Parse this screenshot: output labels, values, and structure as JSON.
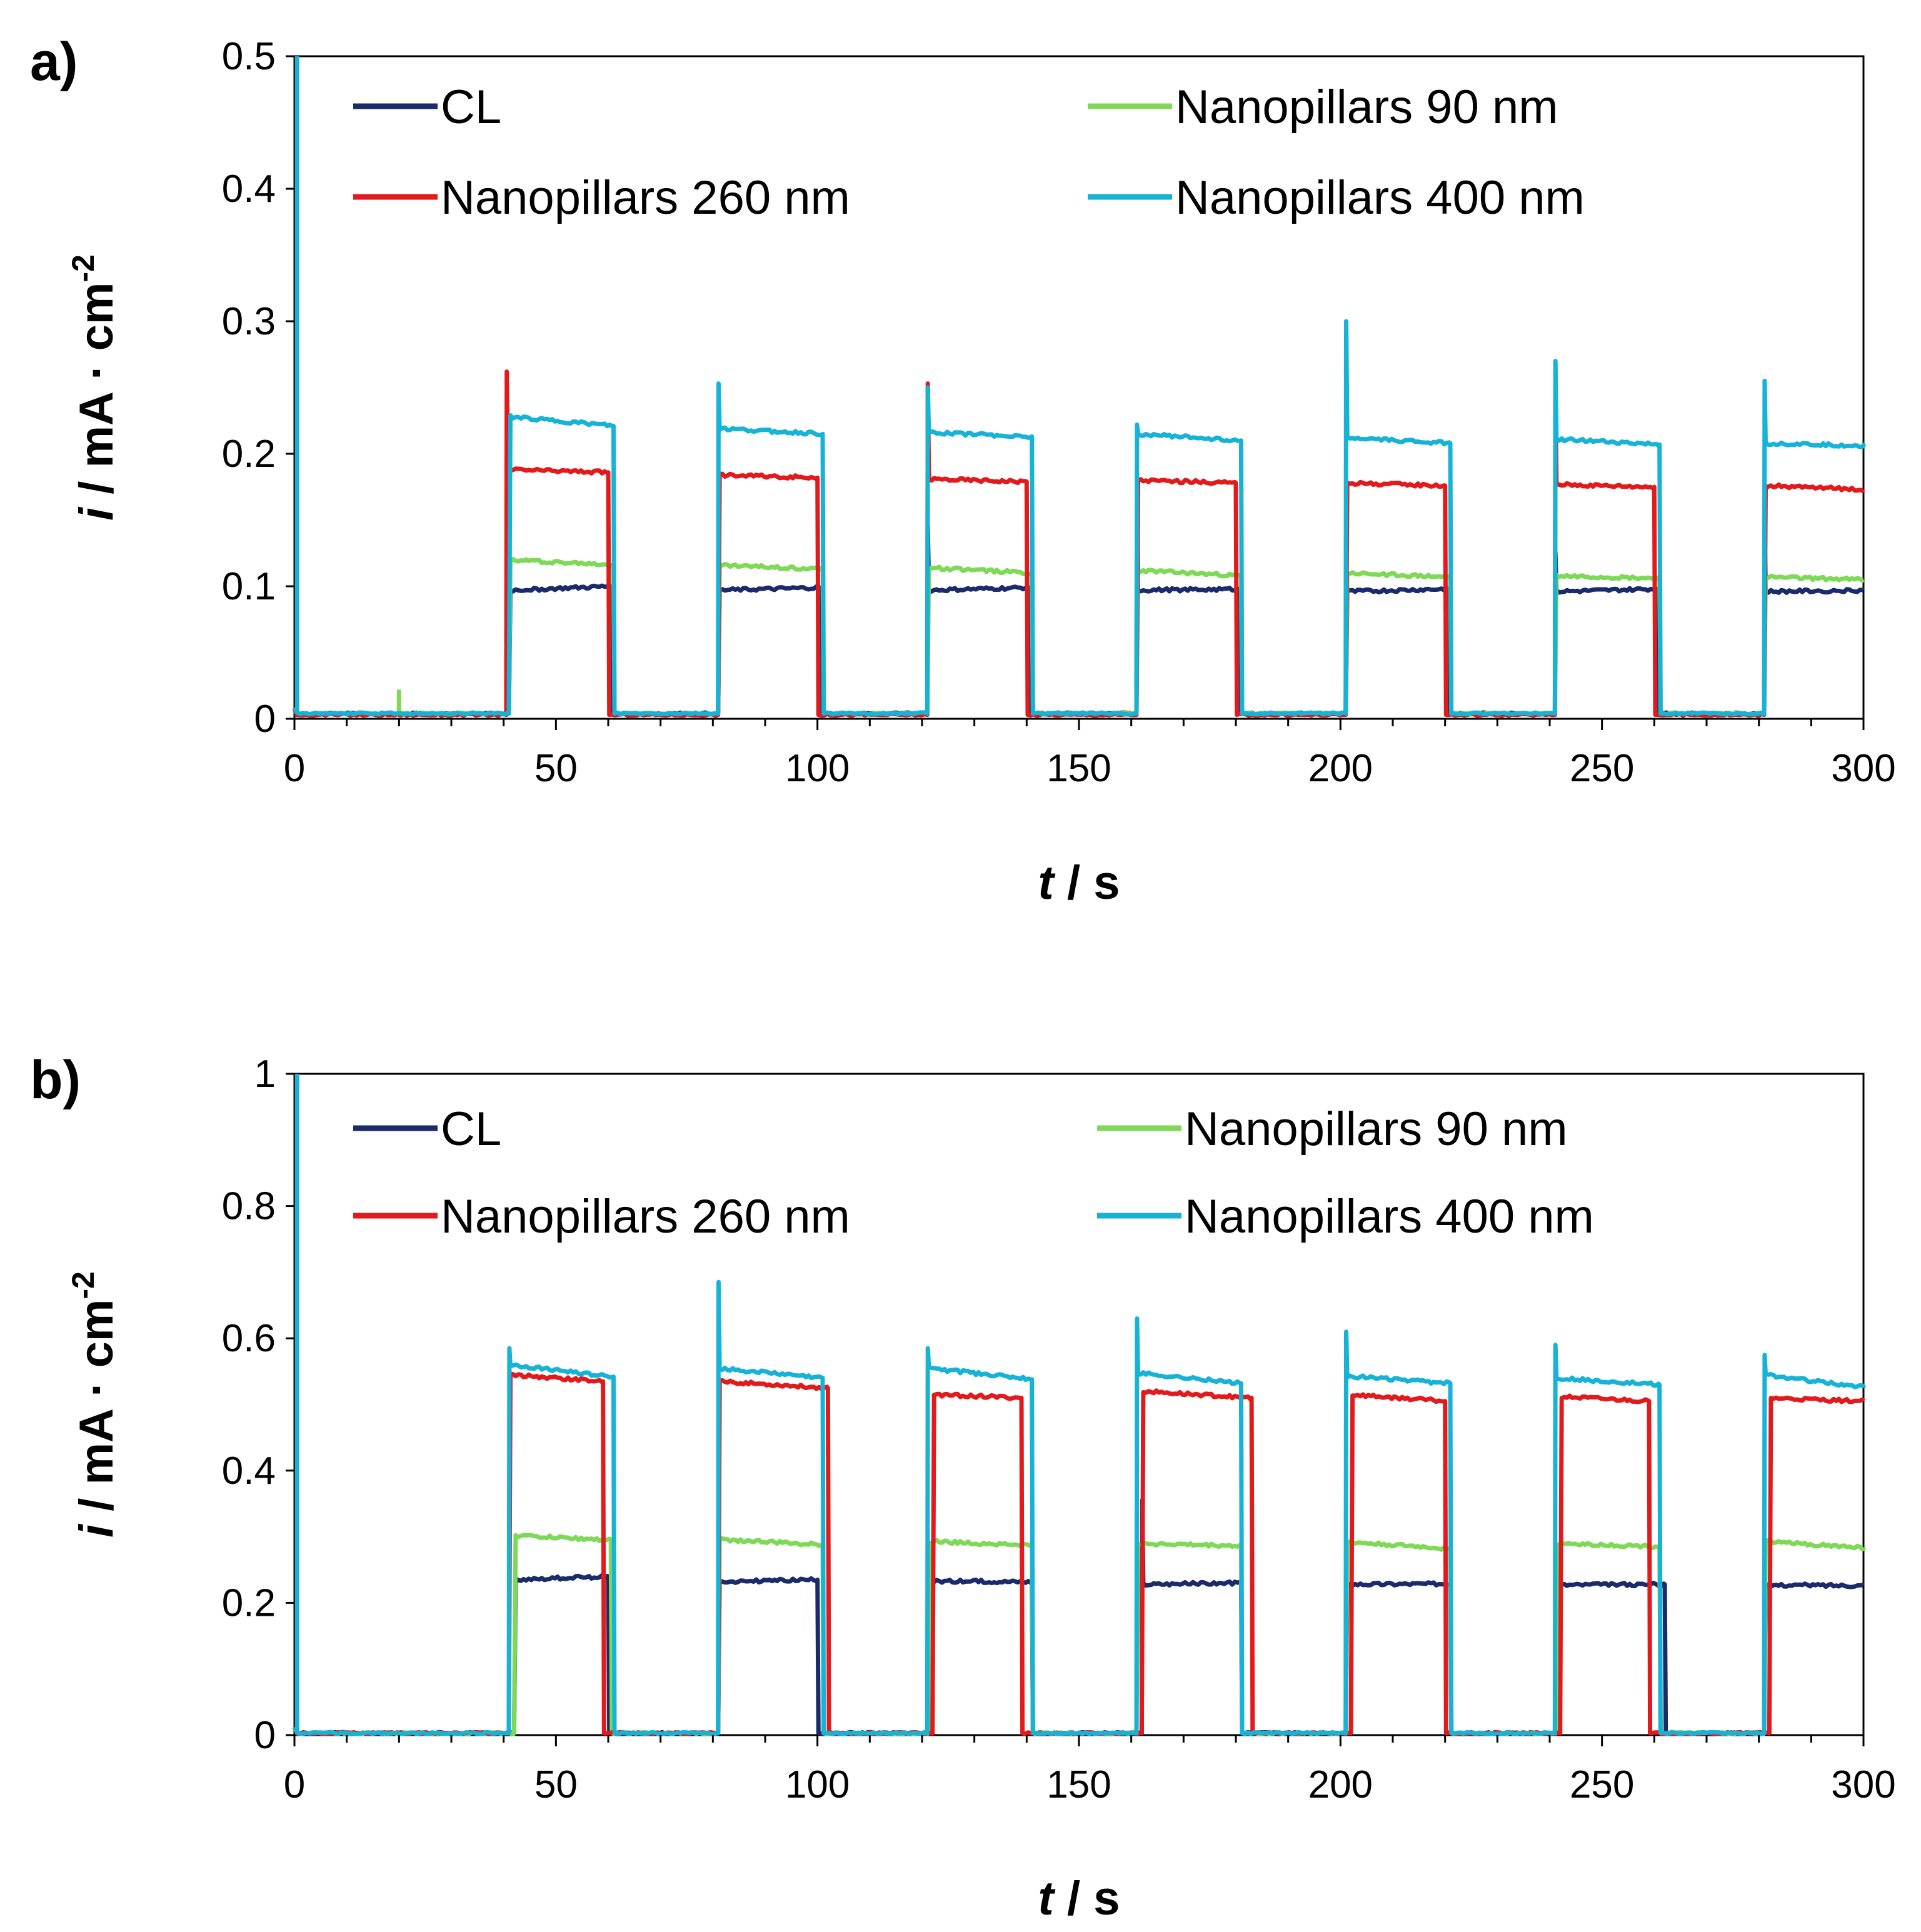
{
  "chart_data": [
    {
      "type": "line",
      "panel_label": "a)",
      "title": "",
      "xlabel_var": "t",
      "xlabel_unit": " / s",
      "ylabel_var": "i",
      "ylabel_unit": " / mA · cm",
      "ylabel_sup": "-2",
      "xlim": [
        0,
        300
      ],
      "ylim": [
        0,
        0.5
      ],
      "xticks": [
        "0",
        "50",
        "100",
        "150",
        "200",
        "250",
        "300"
      ],
      "xtick_values": [
        0,
        50,
        100,
        150,
        200,
        250,
        300
      ],
      "yticks": [
        "0",
        "0.1",
        "0.2",
        "0.3",
        "0.4",
        "0.5"
      ],
      "ytick_values": [
        0,
        0.1,
        0.2,
        0.3,
        0.4,
        0.5
      ],
      "grid": false,
      "legend": "top, two columns",
      "series": [
        {
          "name": "CL",
          "color": "#1b2a6b",
          "baseline": 0.004,
          "on_windows": [
            [
              41,
              60.5
            ],
            [
              81,
              100.5
            ],
            [
              121,
              140.5
            ],
            [
              161,
              180.5
            ],
            [
              201,
              220.5
            ],
            [
              241,
              260.5
            ],
            [
              281,
              300
            ]
          ],
          "on_start": [
            0.097,
            0.097,
            0.097,
            0.097,
            0.096,
            0.096,
            0.096
          ],
          "on_end": [
            0.1,
            0.099,
            0.099,
            0.098,
            0.098,
            0.098,
            0.097
          ],
          "spikes": [
            [
              120.5,
              0.145
            ],
            [
              161.5,
              0.165
            ],
            [
              241.5,
              0.125
            ],
            [
              281.5,
              0.145
            ]
          ]
        },
        {
          "name": "Nanopillars 90 nm",
          "color": "#7ed957",
          "baseline": 0.004,
          "on_windows": [
            [
              41,
              61
            ],
            [
              81,
              101
            ],
            [
              121,
              141
            ],
            [
              161,
              181
            ],
            [
              201,
              221
            ],
            [
              241,
              261
            ],
            [
              281,
              300
            ]
          ],
          "on_start": [
            0.12,
            0.116,
            0.114,
            0.112,
            0.11,
            0.108,
            0.107
          ],
          "on_end": [
            0.116,
            0.113,
            0.11,
            0.108,
            0.107,
            0.106,
            0.105
          ],
          "spikes": [
            [
              20,
              0.022
            ]
          ]
        },
        {
          "name": "Nanopillars 260 nm",
          "color": "#e31a1c",
          "baseline": 0.003,
          "on_windows": [
            [
              40.5,
              60
            ],
            [
              81,
              100
            ],
            [
              121,
              140
            ],
            [
              161,
              180
            ],
            [
              201,
              220
            ],
            [
              241,
              260
            ],
            [
              281,
              300
            ]
          ],
          "on_start": [
            0.188,
            0.184,
            0.181,
            0.18,
            0.178,
            0.177,
            0.176
          ],
          "on_end": [
            0.186,
            0.182,
            0.179,
            0.178,
            0.176,
            0.175,
            0.173
          ],
          "spikes": [
            [
              40.5,
              0.262
            ],
            [
              122.5,
              0.253
            ],
            [
              240.5,
              0.242
            ]
          ]
        },
        {
          "name": "Nanopillars 400 nm",
          "color": "#17b3d6",
          "baseline": 0.004,
          "on_windows": [
            [
              41,
              61
            ],
            [
              81,
              101
            ],
            [
              121,
              141
            ],
            [
              161,
              181
            ],
            [
              201,
              221
            ],
            [
              241,
              261
            ],
            [
              281,
              301
            ]
          ],
          "on_start": [
            0.228,
            0.219,
            0.216,
            0.215,
            0.212,
            0.211,
            0.208
          ],
          "on_end": [
            0.221,
            0.215,
            0.213,
            0.21,
            0.208,
            0.207,
            0.206
          ],
          "spikes": [
            [
              0.5,
              0.5
            ],
            [
              81,
              0.253
            ],
            [
              121,
              0.25
            ],
            [
              161,
              0.222
            ],
            [
              201,
              0.3
            ],
            [
              241,
              0.27
            ],
            [
              281,
              0.255
            ]
          ]
        }
      ]
    },
    {
      "type": "line",
      "panel_label": "b)",
      "title": "",
      "xlabel_var": "t",
      "xlabel_unit": " / s",
      "ylabel_var": "i",
      "ylabel_unit": " / mA · cm",
      "ylabel_sup": "-2",
      "xlim": [
        0,
        300
      ],
      "ylim": [
        0,
        1
      ],
      "xticks": [
        "0",
        "50",
        "100",
        "150",
        "200",
        "250",
        "300"
      ],
      "xtick_values": [
        0,
        50,
        100,
        150,
        200,
        250,
        300
      ],
      "yticks": [
        "0",
        "0.2",
        "0.4",
        "0.6",
        "0.8",
        "1"
      ],
      "ytick_values": [
        0,
        0.2,
        0.4,
        0.6,
        0.8,
        1
      ],
      "grid": false,
      "legend": "top, two columns",
      "series": [
        {
          "name": "CL",
          "color": "#1b2a6b",
          "baseline": 0.003,
          "on_windows": [
            [
              42,
              60
            ],
            [
              81,
              100
            ],
            [
              121,
              141
            ],
            [
              162,
              181
            ],
            [
              201,
              221
            ],
            [
              241,
              262
            ],
            [
              281,
              300
            ]
          ],
          "on_start": [
            0.235,
            0.232,
            0.233,
            0.228,
            0.228,
            0.227,
            0.227
          ],
          "on_end": [
            0.24,
            0.235,
            0.232,
            0.23,
            0.229,
            0.228,
            0.226
          ],
          "spikes": [
            [
              121.5,
              0.25
            ],
            [
              161.5,
              0.355
            ],
            [
              241.5,
              0.262
            ]
          ]
        },
        {
          "name": "Nanopillars 90 nm",
          "color": "#7ed957",
          "baseline": 0.003,
          "on_windows": [
            [
              42,
              60.5
            ],
            [
              81,
              101
            ],
            [
              121.5,
              141
            ],
            [
              161,
              181
            ],
            [
              201,
              221
            ],
            [
              241.5,
              261
            ],
            [
              281,
              301
            ]
          ],
          "on_start": [
            0.302,
            0.296,
            0.293,
            0.29,
            0.292,
            0.29,
            0.293
          ],
          "on_end": [
            0.295,
            0.288,
            0.287,
            0.286,
            0.282,
            0.285,
            0.283
          ],
          "spikes": []
        },
        {
          "name": "Nanopillars 260 nm",
          "color": "#e31a1c",
          "baseline": 0.003,
          "on_windows": [
            [
              41,
              59
            ],
            [
              81,
              102
            ],
            [
              122,
              139
            ],
            [
              162,
              183
            ],
            [
              202,
              220
            ],
            [
              242,
              259
            ],
            [
              282,
              300
            ]
          ],
          "on_start": [
            0.545,
            0.535,
            0.515,
            0.52,
            0.515,
            0.512,
            0.51
          ],
          "on_end": [
            0.535,
            0.525,
            0.51,
            0.51,
            0.505,
            0.505,
            0.505
          ],
          "spikes": []
        },
        {
          "name": "Nanopillars 400 nm",
          "color": "#17b3d6",
          "baseline": 0.003,
          "on_windows": [
            [
              41,
              61
            ],
            [
              81,
              101
            ],
            [
              121,
              141
            ],
            [
              161,
              181
            ],
            [
              201,
              221
            ],
            [
              241,
              261
            ],
            [
              281,
              301
            ]
          ],
          "on_start": [
            0.56,
            0.555,
            0.555,
            0.548,
            0.543,
            0.54,
            0.545
          ],
          "on_end": [
            0.542,
            0.54,
            0.538,
            0.532,
            0.532,
            0.53,
            0.525
          ],
          "spikes": [
            [
              0.5,
              1.0
            ],
            [
              41,
              0.585
            ],
            [
              81,
              0.685
            ],
            [
              121,
              0.585
            ],
            [
              161,
              0.63
            ],
            [
              201,
              0.61
            ],
            [
              241,
              0.59
            ],
            [
              281,
              0.575
            ]
          ]
        }
      ]
    }
  ]
}
